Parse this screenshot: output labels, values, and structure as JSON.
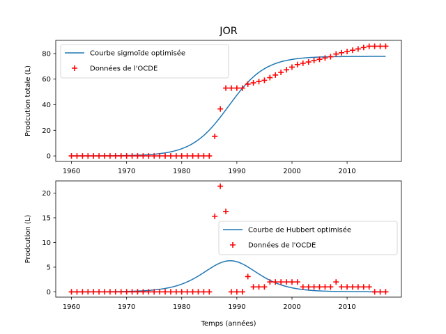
{
  "figure": {
    "title": "JOR"
  },
  "chart_data": [
    {
      "type": "line",
      "title": "JOR",
      "xlabel": "",
      "ylabel": "Prodcution totale (L)",
      "xlim": [
        1957.15,
        2019.85
      ],
      "ylim": [
        -4.3,
        90.3
      ],
      "xticks": [
        1960,
        1970,
        1980,
        1990,
        2000,
        2010
      ],
      "yticks": [
        0,
        20,
        40,
        60,
        80
      ],
      "grid": false,
      "legend_position": "upper-left",
      "series": [
        {
          "name": "Courbe sigmoïde optimisée",
          "kind": "line",
          "color": "#1f77b4",
          "model": {
            "type": "logistic",
            "L": 77.8,
            "k": 0.3,
            "t0": 1988.5
          }
        },
        {
          "name": "Données de l'OCDE",
          "kind": "marker-plus",
          "color": "#ff0000",
          "x": [
            1960,
            1961,
            1962,
            1963,
            1964,
            1965,
            1966,
            1967,
            1968,
            1969,
            1970,
            1971,
            1972,
            1973,
            1974,
            1975,
            1976,
            1977,
            1978,
            1979,
            1980,
            1981,
            1982,
            1983,
            1984,
            1985,
            1986,
            1987,
            1988,
            1989,
            1990,
            1991,
            1992,
            1993,
            1994,
            1995,
            1996,
            1997,
            1998,
            1999,
            2000,
            2001,
            2002,
            2003,
            2004,
            2005,
            2006,
            2007,
            2008,
            2009,
            2010,
            2011,
            2012,
            2013,
            2014,
            2015,
            2016,
            2017
          ],
          "y": [
            0,
            0,
            0,
            0,
            0,
            0,
            0,
            0,
            0,
            0,
            0,
            0,
            0,
            0,
            0,
            0,
            0,
            0,
            0,
            0,
            0,
            0,
            0,
            0,
            0,
            0,
            15.3,
            36.7,
            53,
            53,
            53,
            53,
            56.1,
            57.1,
            58.1,
            59.1,
            61.2,
            63.2,
            65.3,
            67.3,
            69.4,
            71.4,
            72.4,
            73.4,
            74.5,
            75.5,
            76.5,
            77.5,
            79.6,
            80.6,
            81.6,
            82.6,
            83.6,
            84.7,
            85.7,
            85.7,
            85.7,
            85.7
          ]
        }
      ]
    },
    {
      "type": "line",
      "title": "",
      "xlabel": "Temps (années)",
      "ylabel": "Prodcution (L)",
      "xlim": [
        1957.15,
        2019.85
      ],
      "ylim": [
        -1.07,
        22.47
      ],
      "xticks": [
        1960,
        1970,
        1980,
        1990,
        2000,
        2010
      ],
      "yticks": [
        0,
        5,
        10,
        15,
        20
      ],
      "grid": false,
      "legend_position": "center-right",
      "series": [
        {
          "name": "Courbe de Hubbert optimisée",
          "kind": "line",
          "color": "#1f77b4",
          "model": {
            "type": "hubbert",
            "peak": 6.3,
            "k": 0.3,
            "t0": 1988.8
          }
        },
        {
          "name": "Données de l'OCDE",
          "kind": "marker-plus",
          "color": "#ff0000",
          "x": [
            1960,
            1961,
            1962,
            1963,
            1964,
            1965,
            1966,
            1967,
            1968,
            1969,
            1970,
            1971,
            1972,
            1973,
            1974,
            1975,
            1976,
            1977,
            1978,
            1979,
            1980,
            1981,
            1982,
            1983,
            1984,
            1985,
            1986,
            1987,
            1988,
            1989,
            1990,
            1991,
            1992,
            1993,
            1994,
            1995,
            1996,
            1997,
            1998,
            1999,
            2000,
            2001,
            2002,
            2003,
            2004,
            2005,
            2006,
            2007,
            2008,
            2009,
            2010,
            2011,
            2012,
            2013,
            2014,
            2015,
            2016,
            2017
          ],
          "y": [
            0,
            0,
            0,
            0,
            0,
            0,
            0,
            0,
            0,
            0,
            0,
            0,
            0,
            0,
            0,
            0,
            0,
            0,
            0,
            0,
            0,
            0,
            0,
            0,
            0,
            0,
            15.3,
            21.4,
            16.3,
            0,
            0,
            0,
            3.1,
            1,
            1,
            1,
            2,
            2,
            2,
            2,
            2,
            2,
            1,
            1,
            1,
            1,
            1,
            1,
            2,
            1,
            1,
            1,
            1,
            1,
            1,
            0,
            0,
            0
          ]
        }
      ]
    }
  ]
}
